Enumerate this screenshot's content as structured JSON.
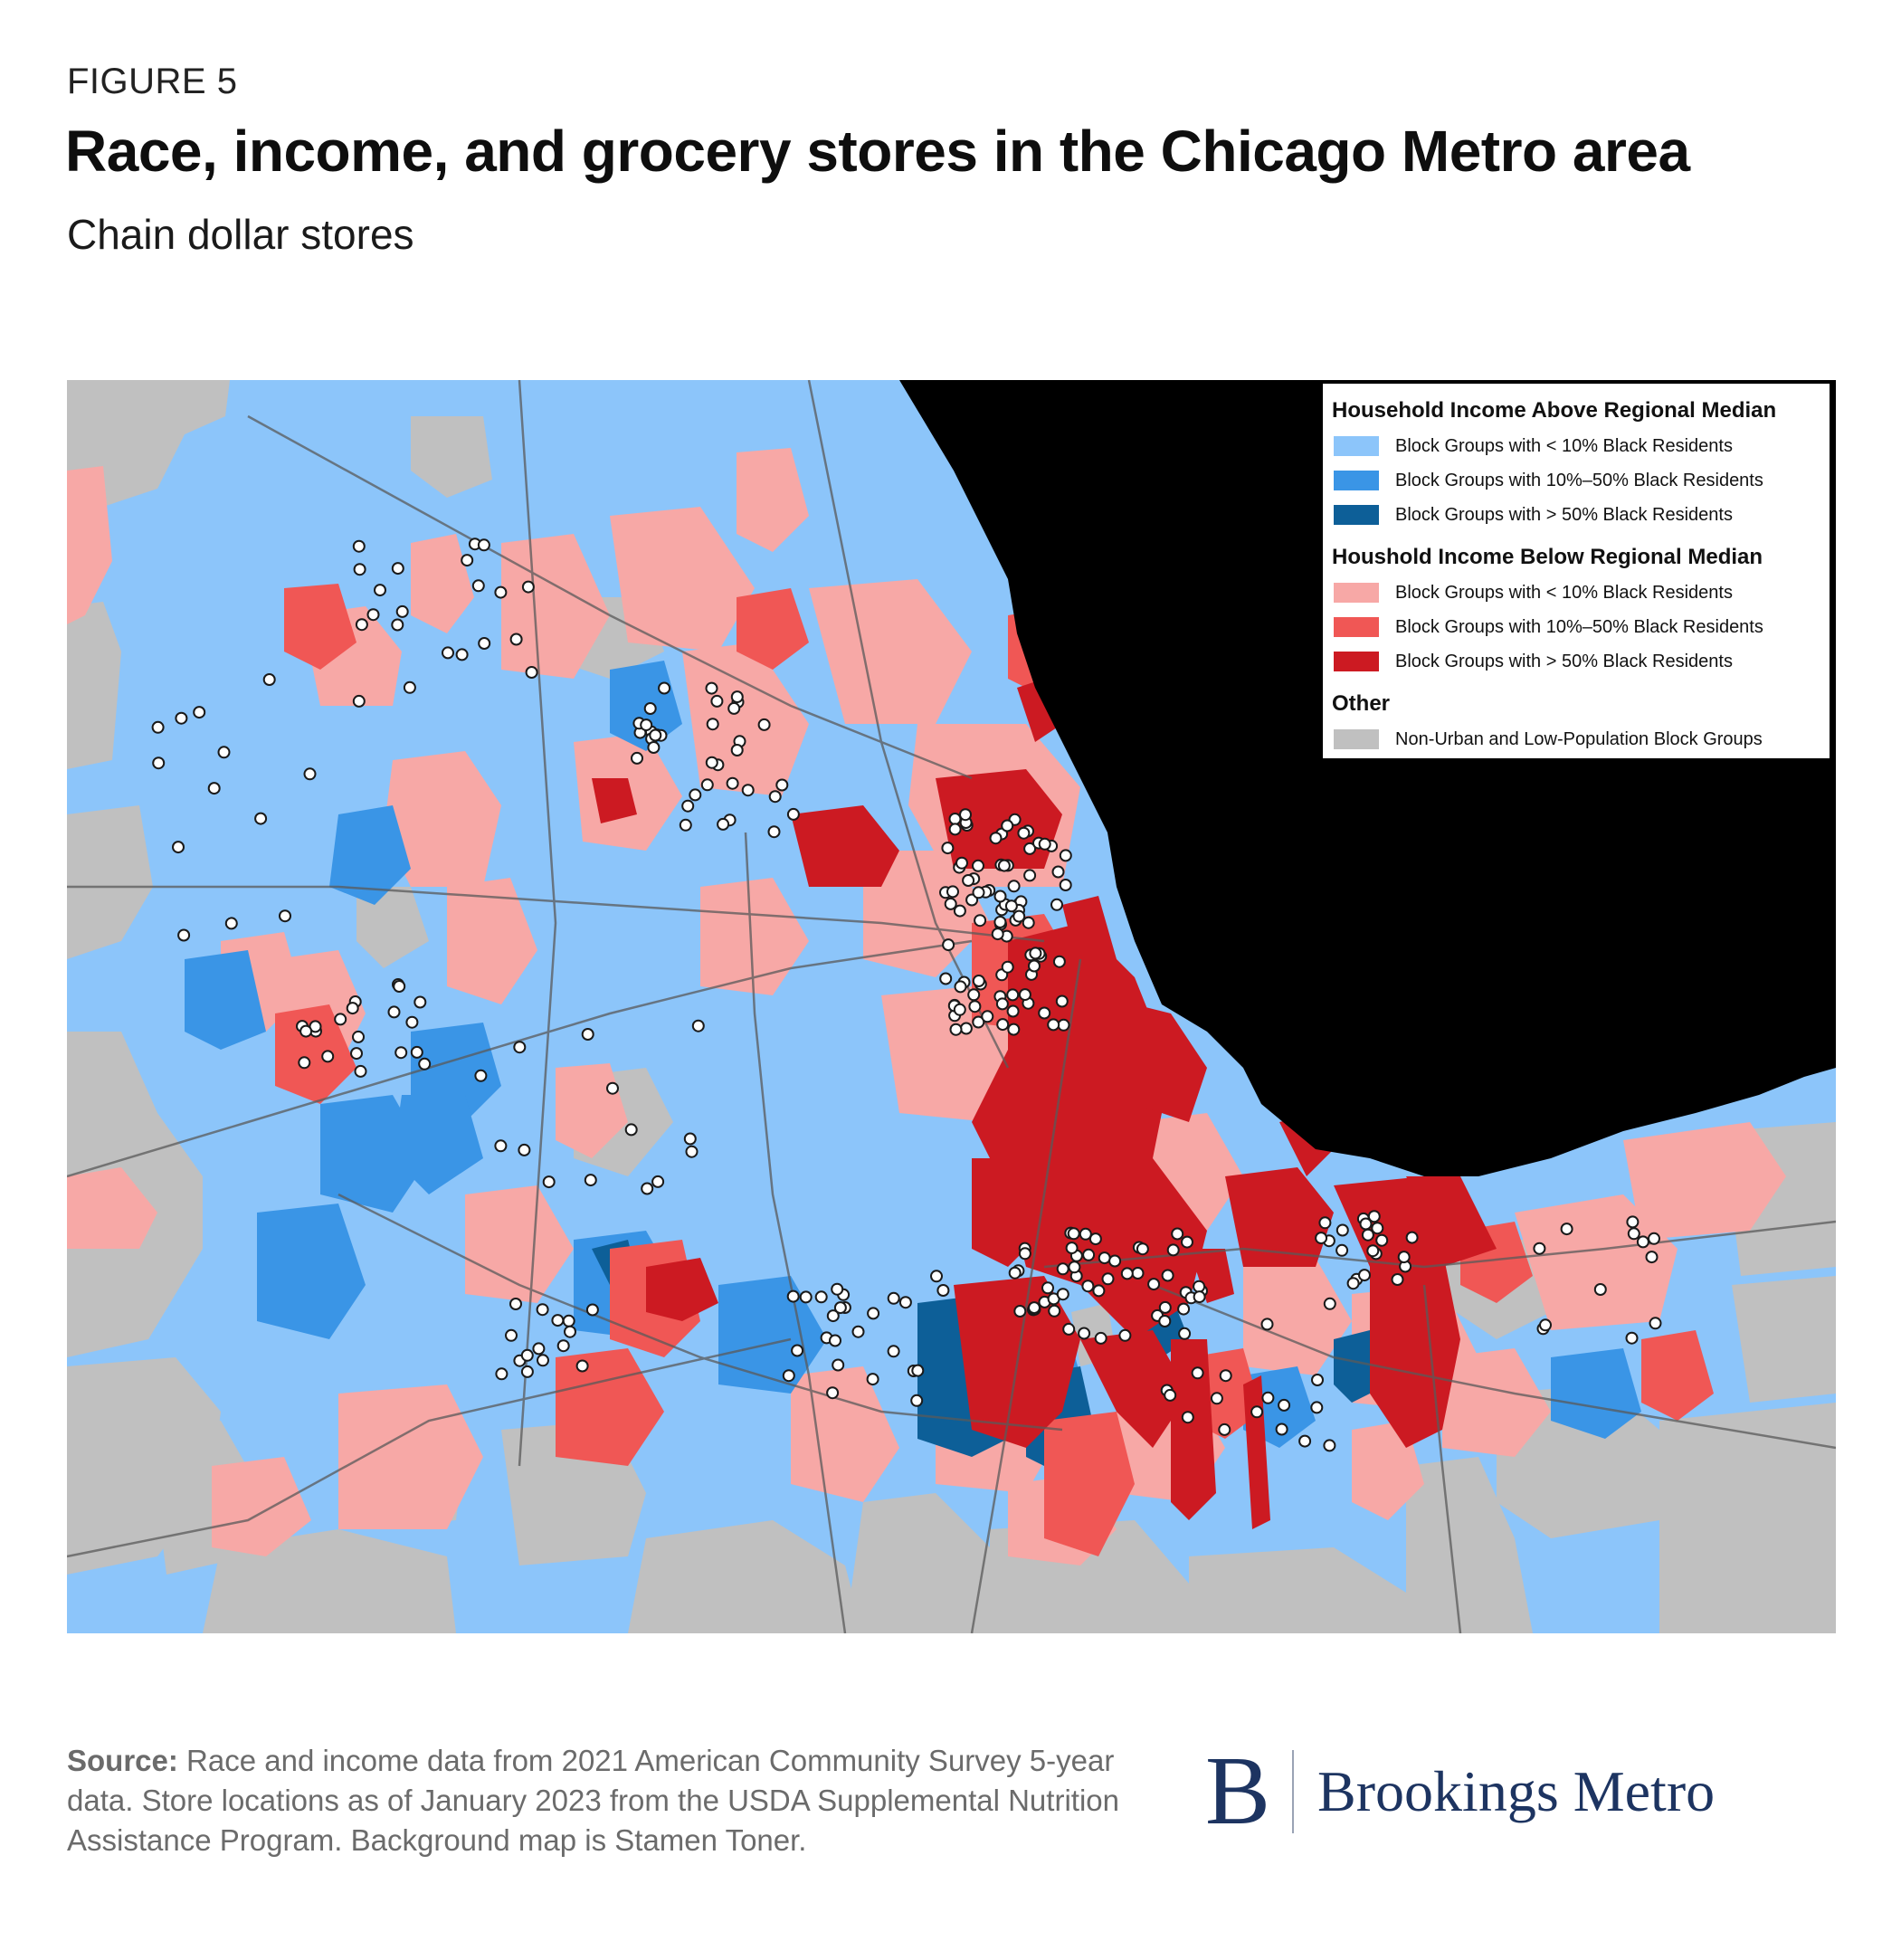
{
  "header": {
    "figure_label": "FIGURE 5",
    "title": "Race, income, and grocery stores in the Chicago Metro area",
    "subtitle": "Chain dollar stores"
  },
  "legend": {
    "sections": [
      {
        "title": "Household Income Above Regional Median",
        "items": [
          {
            "label": "Block Groups with < 10% Black Residents",
            "color": "#8cc5fa"
          },
          {
            "label": "Block Groups with 10%–50% Black Residents",
            "color": "#3a95e6"
          },
          {
            "label": "Block Groups with > 50% Black Residents",
            "color": "#0d5f98"
          }
        ]
      },
      {
        "title": "Houshold Income Below Regional Median",
        "items": [
          {
            "label": "Block Groups with < 10% Black Residents",
            "color": "#f7a8a6"
          },
          {
            "label": "Block Groups with 10%–50% Black Residents",
            "color": "#f05755"
          },
          {
            "label": "Block Groups with > 50% Black Residents",
            "color": "#cc1a22"
          }
        ]
      },
      {
        "title": "Other",
        "items": [
          {
            "label": "Non-Urban and Low-Population Block Groups",
            "color": "#c0c0c0"
          }
        ]
      }
    ]
  },
  "map": {
    "lake_color": "#000000",
    "store_marker_fill": "#ffffff",
    "store_marker_stroke": "#1a1a1a"
  },
  "source": {
    "label": "Source:",
    "text": " Race and income data from 2021 American Community Survey 5-year data. Store locations as of January 2023 from the USDA Supplemental Nutrition Assistance Program. Background map is Stamen Toner."
  },
  "brand": {
    "mark": "B",
    "name": "Brookings Metro"
  }
}
